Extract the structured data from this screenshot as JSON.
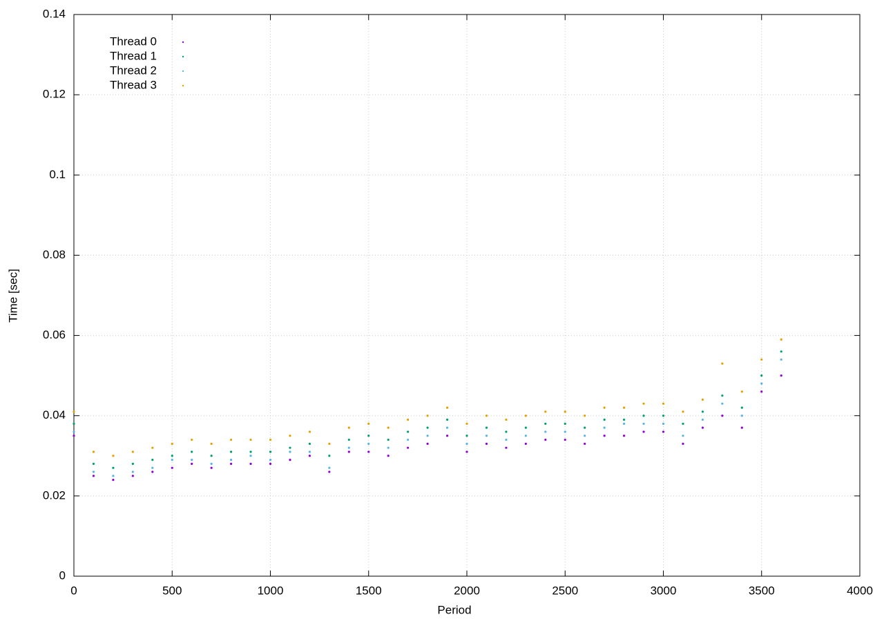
{
  "chart_data": {
    "type": "scatter",
    "x_label": "Period",
    "y_label": "Time [sec]",
    "x": [
      0,
      100,
      200,
      300,
      400,
      500,
      600,
      700,
      800,
      900,
      1000,
      1100,
      1200,
      1300,
      1400,
      1500,
      1600,
      1700,
      1800,
      1900,
      2000,
      2100,
      2200,
      2300,
      2400,
      2500,
      2600,
      2700,
      2800,
      2900,
      3000,
      3100,
      3200,
      3300,
      3400,
      3500,
      3600
    ],
    "series": [
      {
        "name": "Thread 0",
        "color": "#9400d3",
        "values": [
          0.035,
          0.025,
          0.024,
          0.025,
          0.026,
          0.027,
          0.028,
          0.027,
          0.028,
          0.028,
          0.028,
          0.029,
          0.03,
          0.026,
          0.031,
          0.031,
          0.03,
          0.032,
          0.033,
          0.035,
          0.031,
          0.033,
          0.032,
          0.033,
          0.034,
          0.034,
          0.033,
          0.035,
          0.035,
          0.036,
          0.036,
          0.033,
          0.037,
          0.04,
          0.037,
          0.046,
          0.05
        ]
      },
      {
        "name": "Thread 1",
        "color": "#009e73",
        "values": [
          0.038,
          0.028,
          0.027,
          0.028,
          0.029,
          0.03,
          0.031,
          0.03,
          0.031,
          0.031,
          0.031,
          0.032,
          0.033,
          0.03,
          0.034,
          0.035,
          0.034,
          0.036,
          0.037,
          0.039,
          0.035,
          0.037,
          0.036,
          0.037,
          0.038,
          0.038,
          0.037,
          0.039,
          0.039,
          0.04,
          0.04,
          0.038,
          0.041,
          0.045,
          0.042,
          0.05,
          0.056
        ]
      },
      {
        "name": "Thread 2",
        "color": "#56b4e9",
        "values": [
          0.036,
          0.026,
          0.025,
          0.026,
          0.027,
          0.029,
          0.029,
          0.028,
          0.029,
          0.03,
          0.029,
          0.031,
          0.031,
          0.027,
          0.032,
          0.033,
          0.032,
          0.034,
          0.035,
          0.037,
          0.033,
          0.035,
          0.034,
          0.035,
          0.036,
          0.036,
          0.035,
          0.037,
          0.038,
          0.038,
          0.038,
          0.035,
          0.039,
          0.043,
          0.04,
          0.048,
          0.054
        ]
      },
      {
        "name": "Thread 3",
        "color": "#e69f00",
        "values": [
          0.041,
          0.031,
          0.03,
          0.031,
          0.032,
          0.033,
          0.034,
          0.033,
          0.034,
          0.034,
          0.034,
          0.035,
          0.036,
          0.033,
          0.037,
          0.038,
          0.037,
          0.039,
          0.04,
          0.042,
          0.038,
          0.04,
          0.039,
          0.04,
          0.041,
          0.041,
          0.04,
          0.042,
          0.042,
          0.043,
          0.043,
          0.041,
          0.044,
          0.053,
          0.046,
          0.054,
          0.059
        ]
      }
    ],
    "xlim": [
      0,
      4000
    ],
    "xticks": [
      0,
      500,
      1000,
      1500,
      2000,
      2500,
      3000,
      3500,
      4000
    ],
    "ylim": [
      0,
      0.14
    ],
    "yticks": [
      0,
      0.02,
      0.04,
      0.06,
      0.08,
      0.1,
      0.12,
      0.14
    ],
    "grid": true,
    "legend": "top-left"
  }
}
